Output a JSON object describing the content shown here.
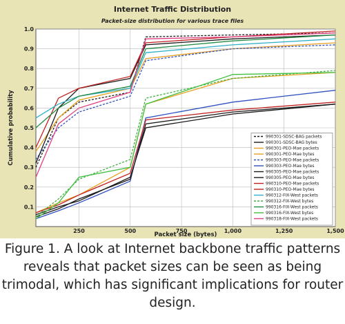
{
  "caption": "Figure 1. A look at Internet backbone traffic patterns reveals that packet sizes can be seen as being trimodal, which has significant implications for router design.",
  "colors": {
    "panel_bg": "#e8e4b6",
    "plot_bg": "#ffffff"
  },
  "chart_data": {
    "type": "line",
    "title": "Internet Traffic Distribution",
    "subtitle": "Packet-size distribution for various trace files",
    "xlabel": "Packet size (bytes)",
    "ylabel": "Cumulative probability",
    "xlim": [
      40,
      1500
    ],
    "ylim": [
      0,
      1
    ],
    "x_ticks": [
      250,
      500,
      750,
      1000,
      1250,
      1500
    ],
    "x_tick_labels": [
      "250",
      "500",
      "750",
      "1,000",
      "1,250",
      "1,500"
    ],
    "y_ticks": [
      0.1,
      0.2,
      0.3,
      0.4,
      0.5,
      0.6,
      0.7,
      0.8,
      0.9,
      1.0
    ],
    "y_tick_labels": [
      "0.1",
      "0.2",
      "0.3",
      "0.4",
      "0.5",
      "0.6",
      "0.7",
      "0.8",
      "0.9",
      "1.0"
    ],
    "grid": true,
    "legend_position": "bottom-right",
    "series": [
      {
        "name": "990301-SDSC-BAG packets",
        "color": "#1a1a1a",
        "dash": "3,2",
        "x": [
          40,
          150,
          250,
          500,
          576,
          1000,
          1500
        ],
        "y": [
          0.3,
          0.55,
          0.63,
          0.68,
          0.96,
          0.97,
          0.98
        ]
      },
      {
        "name": "990301-SDSC-BAG bytes",
        "color": "#1a1a1a",
        "dash": "",
        "x": [
          40,
          150,
          250,
          500,
          576,
          1000,
          1500
        ],
        "y": [
          0.06,
          0.1,
          0.13,
          0.25,
          0.5,
          0.57,
          0.62
        ]
      },
      {
        "name": "990301-PEO-Mae packets",
        "color": "#e8a020",
        "dash": "",
        "x": [
          40,
          150,
          250,
          500,
          576,
          1000,
          1500
        ],
        "y": [
          0.38,
          0.55,
          0.64,
          0.7,
          0.85,
          0.9,
          0.93
        ]
      },
      {
        "name": "990301-PEO-Mae bytes",
        "color": "#e8a020",
        "dash": "",
        "x": [
          40,
          150,
          250,
          500,
          576,
          1000,
          1500
        ],
        "y": [
          0.07,
          0.12,
          0.16,
          0.3,
          0.62,
          0.75,
          0.78
        ]
      },
      {
        "name": "990303-PEO-Mae packets",
        "color": "#3050c0",
        "dash": "3,2",
        "x": [
          40,
          150,
          250,
          500,
          576,
          1000,
          1500
        ],
        "y": [
          0.34,
          0.5,
          0.58,
          0.66,
          0.84,
          0.9,
          0.92
        ]
      },
      {
        "name": "990303-PEO-Mae bytes",
        "color": "#3050c0",
        "dash": "",
        "x": [
          40,
          150,
          250,
          500,
          576,
          1000,
          1500
        ],
        "y": [
          0.04,
          0.08,
          0.12,
          0.23,
          0.55,
          0.63,
          0.69
        ]
      },
      {
        "name": "990305-PEO-Mae packets",
        "color": "#1a1a1a",
        "dash": "",
        "x": [
          40,
          150,
          250,
          500,
          576,
          1000,
          1500
        ],
        "y": [
          0.32,
          0.6,
          0.7,
          0.75,
          0.92,
          0.95,
          0.97
        ]
      },
      {
        "name": "990305-PEO-Mae bytes",
        "color": "#1a1a1a",
        "dash": "",
        "x": [
          40,
          150,
          250,
          500,
          576,
          1000,
          1500
        ],
        "y": [
          0.05,
          0.09,
          0.14,
          0.24,
          0.52,
          0.58,
          0.62
        ]
      },
      {
        "name": "990310-PEO-Mae packets",
        "color": "#c02020",
        "dash": "",
        "x": [
          40,
          150,
          250,
          500,
          576,
          1000,
          1500
        ],
        "y": [
          0.4,
          0.65,
          0.7,
          0.76,
          0.93,
          0.96,
          0.99
        ]
      },
      {
        "name": "990310-PEO-Mae bytes",
        "color": "#c02020",
        "dash": "",
        "x": [
          40,
          150,
          250,
          500,
          576,
          1000,
          1500
        ],
        "y": [
          0.07,
          0.11,
          0.16,
          0.27,
          0.54,
          0.59,
          0.63
        ]
      },
      {
        "name": "990312-FIX-West packets",
        "color": "#30b0c8",
        "dash": "",
        "x": [
          40,
          150,
          250,
          500,
          576,
          1000,
          1500
        ],
        "y": [
          0.55,
          0.62,
          0.66,
          0.7,
          0.88,
          0.92,
          0.95
        ]
      },
      {
        "name": "990312-FIX-West bytes",
        "color": "#40b040",
        "dash": "3,2",
        "x": [
          40,
          150,
          250,
          500,
          576,
          1000,
          1500
        ],
        "y": [
          0.05,
          0.14,
          0.24,
          0.34,
          0.65,
          0.75,
          0.79
        ]
      },
      {
        "name": "990316-FIX-West packets",
        "color": "#208a40",
        "dash": "",
        "x": [
          40,
          150,
          250,
          500,
          576,
          1000,
          1500
        ],
        "y": [
          0.5,
          0.6,
          0.66,
          0.71,
          0.9,
          0.94,
          0.97
        ]
      },
      {
        "name": "990316-FIX-West bytes",
        "color": "#40c040",
        "dash": "",
        "x": [
          40,
          150,
          250,
          500,
          576,
          1000,
          1500
        ],
        "y": [
          0.04,
          0.12,
          0.25,
          0.3,
          0.62,
          0.77,
          0.78
        ]
      },
      {
        "name": "990318-FIX-West packets",
        "color": "#e04080",
        "dash": "",
        "x": [
          40,
          150,
          250,
          500,
          576,
          1000,
          1500
        ],
        "y": [
          0.25,
          0.52,
          0.6,
          0.68,
          0.95,
          0.96,
          0.98
        ]
      }
    ]
  }
}
